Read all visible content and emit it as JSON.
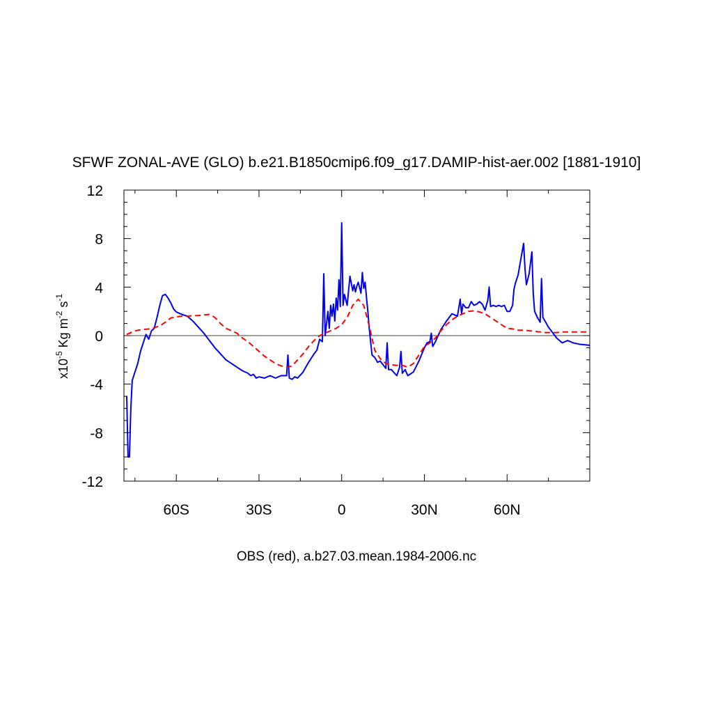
{
  "chart_data": {
    "type": "line",
    "title": "SFWF ZONAL-AVE (GLO) b.e21.B1850cmip6.f09_g17.DAMIP-hist-aer.002 [1881-1910]",
    "ylabel": {
      "prefix": "x10",
      "exp1": "-5",
      "mid": " Kg m",
      "exp2": "-2",
      "unit": " s",
      "exp3": "-1"
    },
    "xlabel": "OBS (red), a.b27.03.mean.1984-2006.nc",
    "xlim": [
      -79,
      90
    ],
    "ylim": [
      -12,
      12
    ],
    "x_ticks": [
      {
        "value": -60,
        "label": "60S"
      },
      {
        "value": -30,
        "label": "30S"
      },
      {
        "value": 0,
        "label": "0"
      },
      {
        "value": 30,
        "label": "30N"
      },
      {
        "value": 60,
        "label": "60N"
      }
    ],
    "y_ticks": [
      {
        "value": 12,
        "label": "12"
      },
      {
        "value": 8,
        "label": "8"
      },
      {
        "value": 4,
        "label": "4"
      },
      {
        "value": 0,
        "label": "0"
      },
      {
        "value": -4,
        "label": "-4"
      },
      {
        "value": -8,
        "label": "-8"
      },
      {
        "value": -12,
        "label": "-12"
      }
    ],
    "zero_line": true,
    "series": [
      {
        "color": "#0000ee",
        "dash": "solid",
        "x": [
          -78,
          -77.5,
          -77,
          -76.5,
          -76,
          -75,
          -74,
          -73,
          -72,
          -71,
          -70,
          -69,
          -68,
          -67,
          -66,
          -65,
          -64,
          -63,
          -62,
          -61,
          -60,
          -58,
          -56,
          -54,
          -52,
          -50,
          -48,
          -46,
          -44,
          -42,
          -40,
          -38,
          -36,
          -34,
          -33,
          -32,
          -31,
          -30,
          -28,
          -26,
          -24,
          -22,
          -20,
          -19.5,
          -19,
          -18,
          -17,
          -16,
          -14,
          -12,
          -10,
          -9,
          -8,
          -7,
          -6.5,
          -6,
          -5.5,
          -5,
          -4.5,
          -4,
          -3.5,
          -3,
          -2.5,
          -2,
          -1.5,
          -1,
          -0.5,
          0,
          0.5,
          1,
          2,
          3,
          4,
          4.5,
          5,
          5.5,
          6,
          7,
          7.5,
          8,
          8.5,
          9,
          9.5,
          10,
          11,
          12,
          13,
          14,
          15,
          16,
          16.5,
          17,
          18,
          20,
          21,
          21.5,
          22,
          23,
          24,
          26,
          28,
          30,
          31,
          32,
          32.5,
          33,
          34,
          36,
          38,
          40,
          42,
          43,
          43.5,
          44,
          45,
          46,
          47,
          48,
          49,
          50,
          51,
          52,
          53,
          53.5,
          54,
          55,
          56,
          57,
          58,
          59,
          60,
          61,
          62,
          62.5,
          63,
          64,
          65,
          66,
          66.5,
          67,
          68,
          69,
          69.5,
          70,
          71,
          72,
          72.5,
          73,
          74,
          75,
          76,
          78,
          80,
          82,
          84,
          86,
          88,
          90
        ],
        "y": [
          -5,
          -10,
          -10,
          -6,
          -3.7,
          -3,
          -2.3,
          -1.3,
          -0.6,
          0.1,
          -0.3,
          0.4,
          0.6,
          1.5,
          2.5,
          3.3,
          3.4,
          3.1,
          2.7,
          2.2,
          1.95,
          1.75,
          1.6,
          1.2,
          0.7,
          0.2,
          -0.4,
          -1,
          -1.5,
          -2,
          -2.3,
          -2.6,
          -2.9,
          -3.1,
          -3.3,
          -3.2,
          -3.5,
          -3.4,
          -3.5,
          -3.3,
          -3.5,
          -3.3,
          -3.3,
          -1.6,
          -3.5,
          -3.6,
          -3.4,
          -3.5,
          -3,
          -2.2,
          -1.5,
          -1.2,
          -0.3,
          -0.5,
          5.1,
          0,
          1,
          2,
          0.6,
          2.5,
          1.6,
          2.6,
          1.2,
          3.1,
          2.1,
          4.6,
          2.4,
          9.3,
          2.5,
          3.4,
          2.5,
          4.9,
          3.7,
          4.2,
          3.6,
          4.1,
          4.4,
          3.5,
          5.2,
          3.9,
          4.4,
          3.1,
          2,
          0.6,
          -1.6,
          -1.8,
          -2.2,
          -2.1,
          -2.4,
          -2.7,
          -0.6,
          -2.8,
          -2.8,
          -3.3,
          -2.6,
          -1.3,
          -3.1,
          -2.8,
          -3.3,
          -3,
          -2.1,
          -1,
          -0.6,
          -0.5,
          0.2,
          -0.9,
          -0.5,
          0.5,
          1.2,
          1.8,
          1.6,
          3,
          1.8,
          2.6,
          2.3,
          2.3,
          2.8,
          2.5,
          2.6,
          2.8,
          2.6,
          2.1,
          2.9,
          4,
          2.4,
          2.5,
          2.4,
          2.5,
          2.4,
          2.5,
          2,
          2,
          2.5,
          3.8,
          4.3,
          5,
          6.3,
          7.6,
          5.5,
          4.2,
          5.1,
          6.9,
          3.5,
          2,
          1.5,
          1.1,
          4.7,
          1.5,
          1.1,
          0.7,
          0.4,
          -0.2,
          -0.6,
          -0.4,
          -0.6,
          -0.7,
          -0.75,
          -0.8
        ]
      },
      {
        "color": "#ff0000",
        "dash": "dashed",
        "x": [
          -78,
          -76,
          -74,
          -72,
          -70,
          -68,
          -66,
          -64,
          -62,
          -60,
          -58,
          -56,
          -54,
          -52,
          -50,
          -48,
          -46,
          -44,
          -42,
          -40,
          -38,
          -36,
          -34,
          -32,
          -30,
          -28,
          -26,
          -24,
          -22,
          -20,
          -18,
          -16,
          -14,
          -12,
          -10,
          -8,
          -6,
          -4,
          -2,
          0,
          2,
          4,
          6,
          8,
          10,
          12,
          14,
          16,
          18,
          20,
          22,
          24,
          26,
          28,
          30,
          32,
          34,
          36,
          38,
          40,
          42,
          44,
          46,
          48,
          50,
          52,
          54,
          56,
          58,
          60,
          62,
          64,
          66,
          68,
          70,
          72,
          74,
          76,
          78,
          80,
          82,
          84,
          86,
          88,
          90
        ],
        "y": [
          0.1,
          0.3,
          0.45,
          0.5,
          0.55,
          0.65,
          0.8,
          1.1,
          1.45,
          1.55,
          1.6,
          1.6,
          1.65,
          1.65,
          1.7,
          1.75,
          1.5,
          1.0,
          0.6,
          0.4,
          0.2,
          -0.2,
          -0.5,
          -0.9,
          -1.3,
          -1.7,
          -2.0,
          -2.3,
          -2.5,
          -2.6,
          -2.5,
          -2.0,
          -1.5,
          -0.9,
          -0.4,
          0,
          0.2,
          0.4,
          0.6,
          0.9,
          1.5,
          2.5,
          3.0,
          2.5,
          0.8,
          -1.2,
          -1.9,
          -2.3,
          -2.4,
          -2.45,
          -2.45,
          -2.6,
          -2.3,
          -1.6,
          -0.9,
          -0.6,
          -0.2,
          0.4,
          0.9,
          1.3,
          1.6,
          1.8,
          2.0,
          2.05,
          1.95,
          1.8,
          1.5,
          1.2,
          0.9,
          0.6,
          0.55,
          0.45,
          0.45,
          0.4,
          0.35,
          0.3,
          0.25,
          0.25,
          0.25,
          0.3,
          0.3,
          0.3,
          0.3,
          0.3,
          0.3
        ]
      }
    ]
  }
}
